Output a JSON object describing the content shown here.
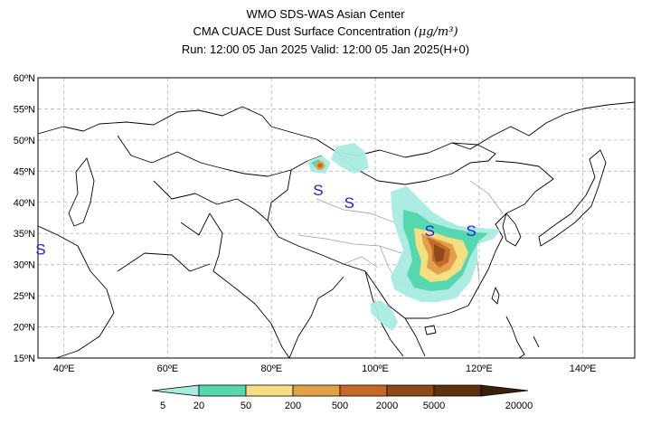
{
  "header": {
    "line1": "WMO SDS-WAS Asian Center",
    "line2_prefix": "CMA CUACE Dust Surface Concentration ",
    "line2_unit": "(μg/m³)",
    "line3": "Run: 12:00 05 Jan 2025    Valid: 12:00 05 Jan 2025(H+0)"
  },
  "map": {
    "lat_ticks": [
      "60ºN",
      "55ºN",
      "50ºN",
      "45ºN",
      "40ºN",
      "35ºN",
      "30ºN",
      "25ºN",
      "20ºN",
      "15ºN"
    ],
    "lat_values": [
      60,
      55,
      50,
      45,
      40,
      35,
      30,
      25,
      20,
      15
    ],
    "lon_ticks": [
      "40ºE",
      "60ºE",
      "80ºE",
      "100ºE",
      "120ºE",
      "140ºE"
    ],
    "lon_values": [
      40,
      60,
      80,
      100,
      120,
      140
    ],
    "extent": {
      "lon_min": 35,
      "lon_max": 150,
      "lat_min": 15,
      "lat_max": 60
    },
    "grid": true,
    "markers": [
      {
        "label": "S",
        "lon": 35.5,
        "lat": 32.5
      },
      {
        "label": "S",
        "lon": 89,
        "lat": 42
      },
      {
        "label": "S",
        "lon": 95,
        "lat": 40
      },
      {
        "label": "S",
        "lon": 110.5,
        "lat": 35.5
      },
      {
        "label": "S",
        "lon": 118.5,
        "lat": 35.5
      }
    ]
  },
  "colorbar": {
    "labels": [
      "5",
      "20",
      "50",
      "200",
      "500",
      "2000",
      "5000",
      "20000"
    ],
    "colors": [
      "#a8ebe0",
      "#55d8b0",
      "#f6df82",
      "#e2a049",
      "#c5692a",
      "#8e4a18",
      "#5e300c",
      "#3a1f0a"
    ]
  }
}
